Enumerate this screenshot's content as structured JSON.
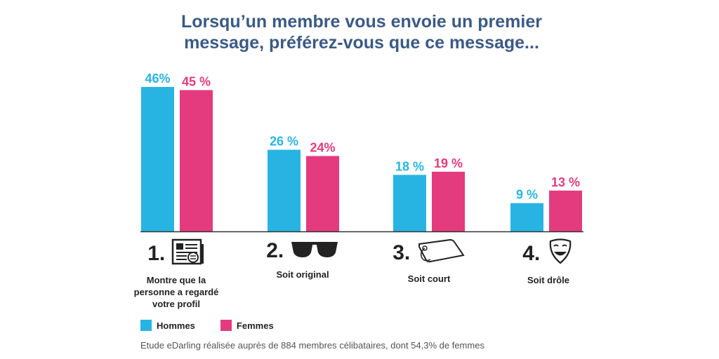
{
  "title_line1": "Lorsqu’un membre vous envoie un premier",
  "title_line2": "message, préférez-vous que ce message...",
  "colors": {
    "hommes": "#28b4e3",
    "femmes": "#e43b7f",
    "title": "#3b5a86"
  },
  "categories": [
    {
      "num": "1.",
      "label_lines": [
        "Montre que la",
        "personne a regardé",
        "votre profil"
      ],
      "icon": "profile-document-icon"
    },
    {
      "num": "2.",
      "label_lines": [
        "Soit original"
      ],
      "icon": "sunglasses-icon"
    },
    {
      "num": "3.",
      "label_lines": [
        "Soit court"
      ],
      "icon": "price-tag-icon"
    },
    {
      "num": "4.",
      "label_lines": [
        "Soit drôle"
      ],
      "icon": "theater-mask-icon"
    }
  ],
  "legend": {
    "hommes": "Hommes",
    "femmes": "Femmes"
  },
  "source": "Etude eDarling réalisée auprès de 884 membres célibataires, dont 54,3% de femmes",
  "chart_data": {
    "type": "bar",
    "categories": [
      "Montre que la personne a regardé votre profil",
      "Soit original",
      "Soit court",
      "Soit drôle"
    ],
    "series": [
      {
        "name": "Hommes",
        "values": [
          46,
          26,
          18,
          9
        ],
        "labels": [
          "46%",
          "26 %",
          "18 %",
          "9 %"
        ]
      },
      {
        "name": "Femmes",
        "values": [
          45,
          24,
          19,
          13
        ],
        "labels": [
          "45 %",
          "24%",
          "19 %",
          "13 %"
        ]
      }
    ],
    "title": "Lorsqu’un membre vous envoie un premier message, préférez-vous que ce message...",
    "ylim": [
      0,
      46
    ],
    "grid": false,
    "legend_position": "bottom-left"
  }
}
